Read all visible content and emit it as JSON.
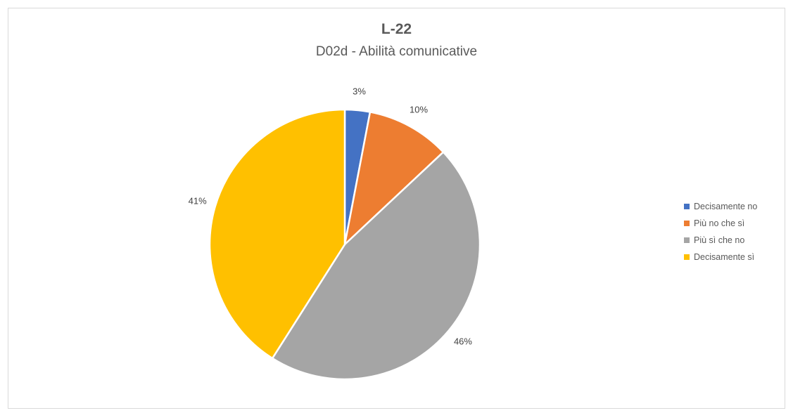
{
  "chart_data": {
    "type": "pie",
    "title": "L-22",
    "subtitle": "D02d - Abilità comunicative",
    "categories": [
      "Decisamente no",
      "Più no che sì",
      "Più sì che no",
      "Decisamente sì"
    ],
    "values": [
      3,
      10,
      46,
      41
    ],
    "data_labels": [
      "3%",
      "10%",
      "46%",
      "41%"
    ],
    "colors": [
      "#4472c4",
      "#ed7d31",
      "#a5a5a5",
      "#ffc000"
    ],
    "legend_position": "right"
  }
}
